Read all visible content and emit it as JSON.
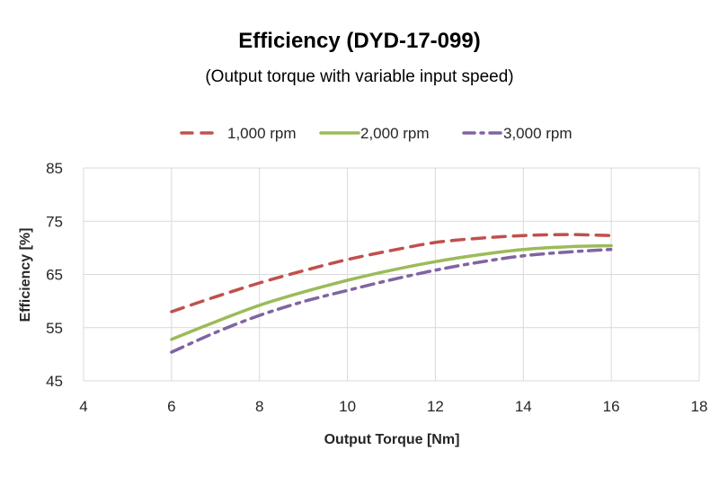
{
  "chart_data": {
    "type": "line",
    "title": "Efficiency (DYD-17-099)",
    "subtitle": "(Output torque with variable input speed)",
    "xlabel": "Output Torque [Nm]",
    "ylabel": "Efficiency [%]",
    "xlim": [
      4,
      18
    ],
    "ylim": [
      45,
      85
    ],
    "xticks": [
      4,
      6,
      8,
      10,
      12,
      14,
      16,
      18
    ],
    "yticks": [
      45,
      55,
      65,
      75,
      85
    ],
    "grid": true,
    "legend_position": "top",
    "x": [
      6,
      7,
      8,
      9,
      10,
      11,
      12,
      13,
      14,
      15,
      16
    ],
    "series": [
      {
        "name": "1,000 rpm",
        "style": "dashed",
        "color": "#C0504D",
        "values": [
          58.0,
          60.8,
          63.4,
          65.7,
          67.8,
          69.5,
          71.0,
          71.8,
          72.3,
          72.5,
          72.3
        ]
      },
      {
        "name": "2,000 rpm",
        "style": "solid",
        "color": "#9BBB59",
        "values": [
          52.8,
          56.1,
          59.2,
          61.7,
          63.9,
          65.8,
          67.4,
          68.7,
          69.7,
          70.2,
          70.4
        ]
      },
      {
        "name": "3,000 rpm",
        "style": "dash-dot",
        "color": "#8064A2",
        "values": [
          50.4,
          54.1,
          57.3,
          59.9,
          62.0,
          64.0,
          65.8,
          67.3,
          68.5,
          69.2,
          69.7
        ]
      }
    ]
  }
}
